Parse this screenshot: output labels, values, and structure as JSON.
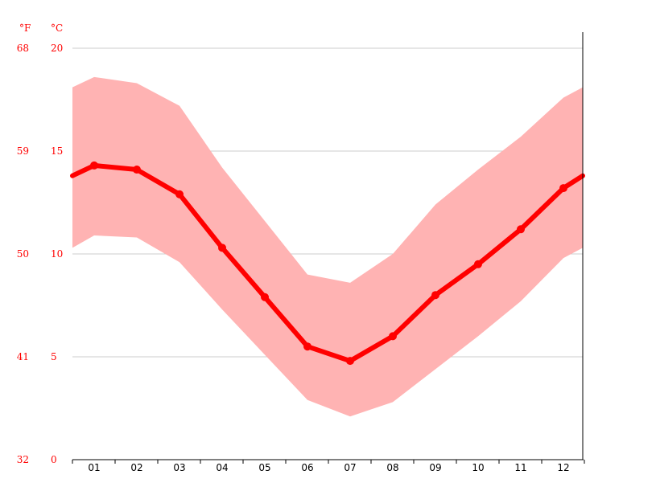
{
  "chart_data": {
    "type": "line",
    "categories": [
      "01",
      "02",
      "03",
      "04",
      "05",
      "06",
      "07",
      "08",
      "09",
      "10",
      "11",
      "12"
    ],
    "series": [
      {
        "values": [
          14.3,
          14.1,
          12.9,
          10.3,
          7.9,
          5.5,
          4.8,
          6.0,
          8.0,
          9.5,
          11.2,
          13.2
        ]
      }
    ],
    "band": {
      "upper": [
        18.6,
        18.3,
        17.2,
        14.2,
        11.6,
        9.0,
        8.6,
        10.0,
        12.4,
        14.1,
        15.7,
        17.6
      ],
      "lower": [
        10.9,
        10.8,
        9.6,
        7.3,
        5.1,
        2.9,
        2.1,
        2.8,
        4.4,
        6.0,
        7.7,
        9.8
      ]
    },
    "edge": {
      "upper": [
        18.1,
        18.1
      ],
      "lower": [
        10.3,
        10.3
      ],
      "line": [
        13.8,
        13.8
      ]
    },
    "units": {
      "left": "°F",
      "right": "°C"
    },
    "y_ticks_c": [
      "20",
      "15",
      "10",
      "5",
      "0"
    ],
    "y_ticks_f": [
      "68",
      "59",
      "50",
      "41",
      "32"
    ],
    "ylim": [
      0,
      20
    ],
    "grid": true,
    "colors": {
      "line": "#ff0000",
      "band": "#ffb3b3",
      "axis_text": "#ff0000",
      "grid": "#cccccc"
    }
  }
}
